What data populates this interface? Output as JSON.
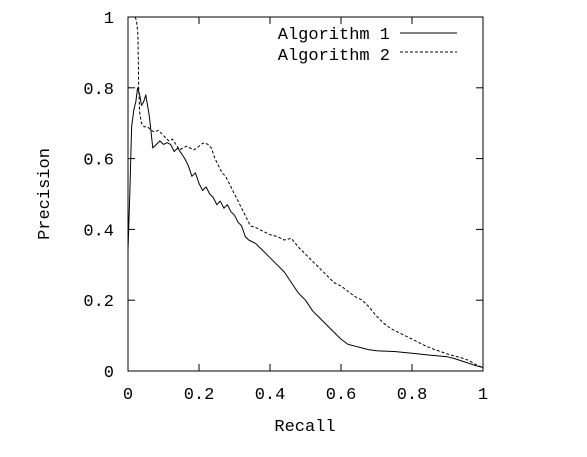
{
  "chart_data": {
    "type": "line",
    "title": "",
    "xlabel": "Recall",
    "ylabel": "Precision",
    "xlim": [
      0,
      1
    ],
    "ylim": [
      0,
      1
    ],
    "xticks": [
      0,
      0.2,
      0.4,
      0.6,
      0.8,
      1
    ],
    "xtick_labels": [
      "0",
      "0.2",
      "0.4",
      "0.6",
      "0.8",
      "1"
    ],
    "yticks": [
      0,
      0.2,
      0.4,
      0.6,
      0.8,
      1
    ],
    "ytick_labels": [
      "0",
      "0.2",
      "0.4",
      "0.6",
      "0.8",
      "1"
    ],
    "grid": false,
    "legend_position": "top-right",
    "series": [
      {
        "name": "Algorithm 1",
        "style": "solid",
        "color": "#000000",
        "x": [
          0.0,
          0.005,
          0.01,
          0.017,
          0.022,
          0.027,
          0.033,
          0.038,
          0.044,
          0.05,
          0.06,
          0.07,
          0.08,
          0.09,
          0.1,
          0.11,
          0.12,
          0.13,
          0.14,
          0.15,
          0.16,
          0.17,
          0.18,
          0.19,
          0.2,
          0.21,
          0.22,
          0.23,
          0.24,
          0.25,
          0.26,
          0.27,
          0.28,
          0.29,
          0.3,
          0.31,
          0.32,
          0.33,
          0.34,
          0.36,
          0.38,
          0.4,
          0.42,
          0.44,
          0.46,
          0.48,
          0.5,
          0.52,
          0.54,
          0.56,
          0.58,
          0.6,
          0.62,
          0.64,
          0.66,
          0.68,
          0.7,
          0.75,
          0.8,
          0.85,
          0.9,
          0.92,
          0.95,
          0.98,
          1.0
        ],
        "y": [
          0.34,
          0.5,
          0.69,
          0.74,
          0.76,
          0.8,
          0.78,
          0.75,
          0.76,
          0.78,
          0.72,
          0.63,
          0.64,
          0.65,
          0.64,
          0.645,
          0.64,
          0.62,
          0.63,
          0.615,
          0.6,
          0.58,
          0.55,
          0.56,
          0.53,
          0.51,
          0.52,
          0.5,
          0.49,
          0.47,
          0.48,
          0.46,
          0.47,
          0.45,
          0.44,
          0.42,
          0.41,
          0.38,
          0.37,
          0.36,
          0.34,
          0.32,
          0.3,
          0.28,
          0.25,
          0.22,
          0.2,
          0.17,
          0.15,
          0.13,
          0.11,
          0.09,
          0.075,
          0.07,
          0.065,
          0.06,
          0.057,
          0.055,
          0.05,
          0.045,
          0.04,
          0.035,
          0.025,
          0.015,
          0.01
        ]
      },
      {
        "name": "Algorithm 2",
        "style": "dashed",
        "color": "#000000",
        "x": [
          0.02,
          0.024,
          0.028,
          0.03,
          0.033,
          0.038,
          0.045,
          0.055,
          0.065,
          0.075,
          0.085,
          0.095,
          0.105,
          0.115,
          0.125,
          0.135,
          0.145,
          0.155,
          0.165,
          0.175,
          0.185,
          0.195,
          0.205,
          0.215,
          0.225,
          0.235,
          0.245,
          0.255,
          0.265,
          0.275,
          0.285,
          0.295,
          0.305,
          0.315,
          0.325,
          0.335,
          0.345,
          0.36,
          0.38,
          0.4,
          0.42,
          0.44,
          0.46,
          0.48,
          0.5,
          0.52,
          0.54,
          0.56,
          0.58,
          0.6,
          0.62,
          0.64,
          0.66,
          0.68,
          0.7,
          0.72,
          0.74,
          0.76,
          0.78,
          0.8,
          0.82,
          0.84,
          0.86,
          0.88,
          0.9,
          0.92,
          0.94,
          0.96,
          0.98,
          1.0
        ],
        "y": [
          1.0,
          0.99,
          0.95,
          0.8,
          0.73,
          0.7,
          0.69,
          0.69,
          0.68,
          0.675,
          0.68,
          0.67,
          0.66,
          0.65,
          0.655,
          0.64,
          0.625,
          0.63,
          0.635,
          0.63,
          0.625,
          0.63,
          0.64,
          0.645,
          0.64,
          0.63,
          0.6,
          0.58,
          0.56,
          0.55,
          0.53,
          0.51,
          0.49,
          0.47,
          0.45,
          0.43,
          0.41,
          0.405,
          0.395,
          0.385,
          0.38,
          0.37,
          0.375,
          0.35,
          0.33,
          0.31,
          0.29,
          0.27,
          0.25,
          0.24,
          0.225,
          0.21,
          0.2,
          0.18,
          0.155,
          0.135,
          0.12,
          0.11,
          0.1,
          0.09,
          0.08,
          0.07,
          0.062,
          0.055,
          0.048,
          0.042,
          0.037,
          0.03,
          0.018,
          0.01
        ]
      }
    ]
  }
}
